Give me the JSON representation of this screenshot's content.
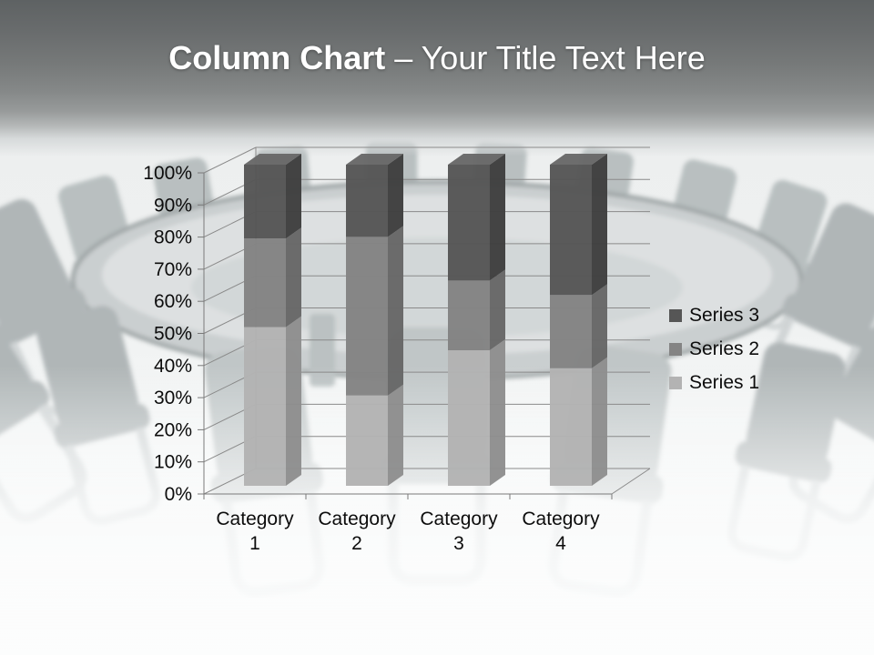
{
  "slide": {
    "title": {
      "bold": "Column Chart",
      "separator": " – ",
      "regular": "Your Title Text Here",
      "color": "#ffffff"
    }
  },
  "chart_data": {
    "type": "bar",
    "subtype": "3d-column-100pct-stacked",
    "title": "",
    "xlabel": "",
    "ylabel": "",
    "grid": true,
    "categories": [
      "Category 1",
      "Category 2",
      "Category 3",
      "Category 4"
    ],
    "series": [
      {
        "name": "Series 1",
        "values": [
          49.4,
          28.1,
          42.2,
          36.6
        ],
        "unit": "%",
        "color_front": "#b3b3b3",
        "color_side": "#8f8f8f",
        "color_top": "#c2c2c2"
      },
      {
        "name": "Series 2",
        "values": [
          27.6,
          49.4,
          21.7,
          22.8
        ],
        "unit": "%",
        "color_front": "#848484",
        "color_side": "#686868",
        "color_top": "#939393"
      },
      {
        "name": "Series 3",
        "values": [
          23.0,
          22.5,
          36.1,
          40.6
        ],
        "unit": "%",
        "color_front": "#565656",
        "color_side": "#3f3f3f",
        "color_top": "#696969"
      }
    ],
    "value_axis": {
      "min": 0,
      "max": 100,
      "tick_step": 10,
      "tick_labels": [
        "0%",
        "10%",
        "20%",
        "30%",
        "40%",
        "50%",
        "60%",
        "70%",
        "80%",
        "90%",
        "100%"
      ]
    },
    "legend": {
      "position": "right",
      "entries": [
        "Series 3",
        "Series 2",
        "Series 1"
      ]
    },
    "gridline_color": "#8a8a8a",
    "axis_color": "#7a7a7a",
    "label_color": "#0d0d0d"
  }
}
